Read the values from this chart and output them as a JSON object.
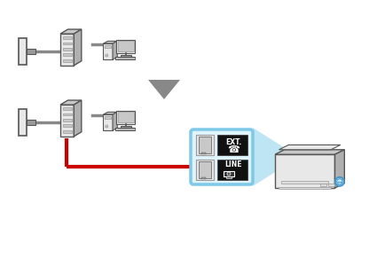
{
  "bg_color": "#ffffff",
  "red_cable": "#cc0000",
  "gray_cable": "#888888",
  "gray_dark": "#555555",
  "gray_mid": "#999999",
  "gray_light": "#dddddd",
  "gray_fill": "#e8e8e8",
  "gray_top": "#c8c8c8",
  "gray_right": "#b0b0b0",
  "blue_border": "#7ec8e8",
  "blue_beam": "#a8ddf0",
  "black_box": "#111111",
  "white": "#ffffff",
  "arrow_fill": "#888888",
  "ext_label": "EXT.",
  "line_label": "LINE"
}
